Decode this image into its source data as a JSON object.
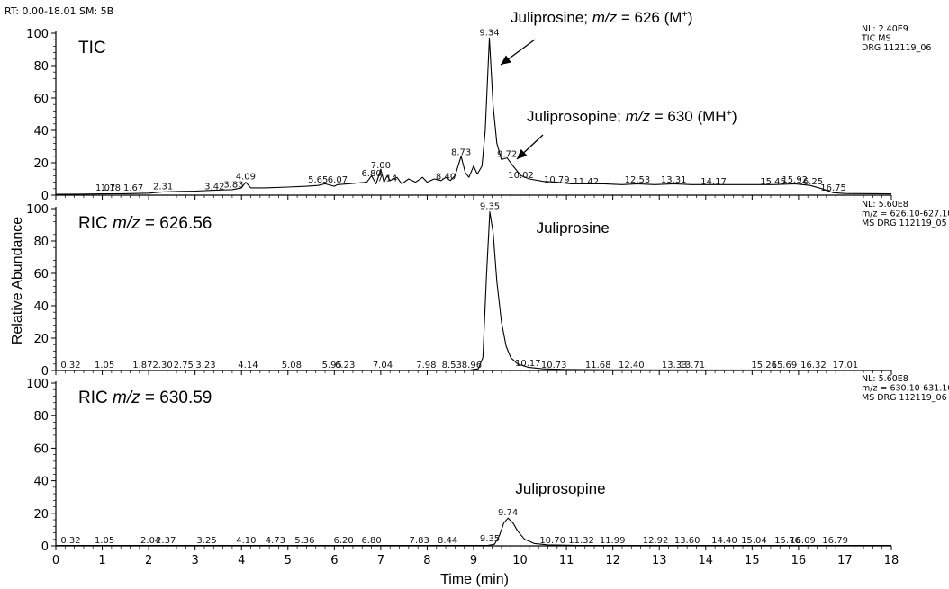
{
  "header": "RT: 0.00-18.01  SM: 5B",
  "ylabel": "Relative Abundance",
  "xlabel": "Time (min)",
  "xticks": [
    "0",
    "1",
    "2",
    "3",
    "4",
    "5",
    "6",
    "7",
    "8",
    "9",
    "10",
    "11",
    "12",
    "13",
    "14",
    "15",
    "16",
    "17",
    "18"
  ],
  "yticks": [
    "0",
    "20",
    "40",
    "60",
    "80",
    "100"
  ],
  "panels": [
    {
      "title": "TIC",
      "info": [
        "NL: 2.40E9",
        "TIC MS",
        "DRG 112119_06"
      ],
      "annotations": []
    },
    {
      "title": "RIC m/z = 626.56",
      "info": [
        "NL: 5.60E8",
        "m/z = 626.10-627.10",
        "MS DRG 112119_05"
      ],
      "annotations": [
        {
          "text": "Juliprosine",
          "x": 10.35,
          "y": 85
        }
      ]
    },
    {
      "title": "RIC m/z = 630.59",
      "info": [
        "NL: 5.60E8",
        "m/z = 630.10-631.10",
        "MS DRG 112119_06"
      ],
      "annotations": [
        {
          "text": "Juliprosopine",
          "x": 9.9,
          "y": 32
        }
      ]
    }
  ],
  "callouts": {
    "juliprosine": {
      "prefix": "Juliprosine; ",
      "italic": "m/z",
      "suffix": " = 626 (M",
      "sup": "+",
      "end": ")"
    },
    "juliprosopine": {
      "prefix": "Juliprosopine; ",
      "italic": "m/z",
      "suffix": " = 630 (MH",
      "sup": "+",
      "end": ")"
    }
  },
  "chart_data": [
    {
      "type": "line",
      "title": "TIC",
      "xlabel": "Time (min)",
      "ylabel": "Relative Abundance",
      "xlim": [
        0,
        18
      ],
      "ylim": [
        0,
        100
      ],
      "grid": false,
      "peak_labels": [
        {
          "x": 1.07,
          "y": 1
        },
        {
          "x": 1.18,
          "y": 1
        },
        {
          "x": 1.67,
          "y": 1
        },
        {
          "x": 2.31,
          "y": 2
        },
        {
          "x": 3.42,
          "y": 2
        },
        {
          "x": 3.83,
          "y": 3
        },
        {
          "x": 4.09,
          "y": 8
        },
        {
          "x": 5.65,
          "y": 6
        },
        {
          "x": 6.07,
          "y": 6
        },
        {
          "x": 6.8,
          "y": 10
        },
        {
          "x": 7.0,
          "y": 15
        },
        {
          "x": 7.14,
          "y": 7
        },
        {
          "x": 8.4,
          "y": 8
        },
        {
          "x": 8.73,
          "y": 23
        },
        {
          "x": 9.34,
          "y": 97
        },
        {
          "x": 9.72,
          "y": 22
        },
        {
          "x": 10.02,
          "y": 9
        },
        {
          "x": 10.79,
          "y": 6
        },
        {
          "x": 11.42,
          "y": 5
        },
        {
          "x": 12.53,
          "y": 6
        },
        {
          "x": 13.31,
          "y": 6
        },
        {
          "x": 14.17,
          "y": 5
        },
        {
          "x": 15.45,
          "y": 5
        },
        {
          "x": 15.92,
          "y": 6
        },
        {
          "x": 16.25,
          "y": 5
        },
        {
          "x": 16.75,
          "y": 1
        }
      ],
      "trace": [
        [
          0,
          0.5
        ],
        [
          0.5,
          0.6
        ],
        [
          1,
          0.8
        ],
        [
          1.5,
          0.9
        ],
        [
          2,
          1.2
        ],
        [
          2.3,
          2
        ],
        [
          2.6,
          2.3
        ],
        [
          3,
          2.5
        ],
        [
          3.4,
          3
        ],
        [
          3.8,
          3.4
        ],
        [
          4.0,
          4.5
        ],
        [
          4.09,
          8
        ],
        [
          4.2,
          4.5
        ],
        [
          4.5,
          4.5
        ],
        [
          5,
          5
        ],
        [
          5.4,
          5.5
        ],
        [
          5.65,
          6
        ],
        [
          5.8,
          7
        ],
        [
          6.0,
          5.5
        ],
        [
          6.07,
          6.5
        ],
        [
          6.3,
          7
        ],
        [
          6.5,
          7.5
        ],
        [
          6.7,
          8
        ],
        [
          6.8,
          12
        ],
        [
          6.9,
          7
        ],
        [
          7.0,
          16
        ],
        [
          7.07,
          8
        ],
        [
          7.14,
          12
        ],
        [
          7.2,
          9
        ],
        [
          7.35,
          11
        ],
        [
          7.45,
          7
        ],
        [
          7.6,
          10
        ],
        [
          7.75,
          8
        ],
        [
          7.9,
          11
        ],
        [
          8.0,
          8
        ],
        [
          8.15,
          10
        ],
        [
          8.3,
          9
        ],
        [
          8.4,
          11
        ],
        [
          8.5,
          9
        ],
        [
          8.6,
          12
        ],
        [
          8.73,
          24
        ],
        [
          8.82,
          14
        ],
        [
          8.9,
          11
        ],
        [
          9.0,
          18
        ],
        [
          9.08,
          13
        ],
        [
          9.18,
          18
        ],
        [
          9.25,
          40
        ],
        [
          9.34,
          97
        ],
        [
          9.42,
          55
        ],
        [
          9.5,
          32
        ],
        [
          9.6,
          22
        ],
        [
          9.72,
          23
        ],
        [
          9.85,
          18
        ],
        [
          10.02,
          12
        ],
        [
          10.2,
          10
        ],
        [
          10.5,
          8.5
        ],
        [
          10.79,
          8
        ],
        [
          11.1,
          7
        ],
        [
          11.42,
          7
        ],
        [
          11.8,
          7
        ],
        [
          12.2,
          6.5
        ],
        [
          12.53,
          7
        ],
        [
          12.9,
          6.5
        ],
        [
          13.31,
          7
        ],
        [
          13.7,
          6.5
        ],
        [
          14.17,
          6.5
        ],
        [
          14.6,
          6.5
        ],
        [
          15.0,
          6.5
        ],
        [
          15.45,
          6.5
        ],
        [
          15.92,
          7
        ],
        [
          16.25,
          6
        ],
        [
          16.5,
          4
        ],
        [
          16.75,
          1.5
        ],
        [
          17.0,
          1
        ],
        [
          18.0,
          0.8
        ]
      ]
    },
    {
      "type": "line",
      "title": "RIC m/z = 626.56",
      "xlabel": "Time (min)",
      "ylabel": "Relative Abundance",
      "xlim": [
        0,
        18
      ],
      "ylim": [
        0,
        100
      ],
      "grid": false,
      "peak_labels": [
        {
          "x": 0.32,
          "y": 0
        },
        {
          "x": 1.05,
          "y": 0
        },
        {
          "x": 1.87,
          "y": 0
        },
        {
          "x": 2.3,
          "y": 0
        },
        {
          "x": 2.75,
          "y": 0
        },
        {
          "x": 3.23,
          "y": 0
        },
        {
          "x": 4.14,
          "y": 0
        },
        {
          "x": 5.08,
          "y": 0
        },
        {
          "x": 5.95,
          "y": 0
        },
        {
          "x": 6.23,
          "y": 0
        },
        {
          "x": 7.04,
          "y": 0
        },
        {
          "x": 7.98,
          "y": 0
        },
        {
          "x": 8.53,
          "y": 0
        },
        {
          "x": 8.96,
          "y": 0
        },
        {
          "x": 9.35,
          "y": 98
        },
        {
          "x": 10.17,
          "y": 1
        },
        {
          "x": 10.73,
          "y": 0
        },
        {
          "x": 11.68,
          "y": 0
        },
        {
          "x": 12.4,
          "y": 0
        },
        {
          "x": 13.33,
          "y": 0
        },
        {
          "x": 13.71,
          "y": 0
        },
        {
          "x": 15.26,
          "y": 0
        },
        {
          "x": 15.69,
          "y": 0
        },
        {
          "x": 16.32,
          "y": 0
        },
        {
          "x": 17.01,
          "y": 0
        }
      ],
      "trace": [
        [
          0,
          0.2
        ],
        [
          8.9,
          0.3
        ],
        [
          9.1,
          1
        ],
        [
          9.2,
          8
        ],
        [
          9.28,
          60
        ],
        [
          9.35,
          98
        ],
        [
          9.42,
          85
        ],
        [
          9.5,
          55
        ],
        [
          9.6,
          30
        ],
        [
          9.7,
          15
        ],
        [
          9.8,
          8
        ],
        [
          9.95,
          4
        ],
        [
          10.17,
          2
        ],
        [
          10.5,
          1
        ],
        [
          11,
          0.6
        ],
        [
          12,
          0.4
        ],
        [
          18,
          0.2
        ]
      ]
    },
    {
      "type": "line",
      "title": "RIC m/z = 630.59",
      "xlabel": "Time (min)",
      "ylabel": "Relative Abundance",
      "xlim": [
        0,
        18
      ],
      "ylim": [
        0,
        100
      ],
      "grid": false,
      "peak_labels": [
        {
          "x": 0.32,
          "y": 0
        },
        {
          "x": 1.05,
          "y": 0
        },
        {
          "x": 2.04,
          "y": 0
        },
        {
          "x": 2.37,
          "y": 0
        },
        {
          "x": 3.25,
          "y": 0
        },
        {
          "x": 4.1,
          "y": 0
        },
        {
          "x": 4.73,
          "y": 0
        },
        {
          "x": 5.36,
          "y": 0
        },
        {
          "x": 6.2,
          "y": 0
        },
        {
          "x": 6.8,
          "y": 0
        },
        {
          "x": 7.83,
          "y": 0
        },
        {
          "x": 8.44,
          "y": 0
        },
        {
          "x": 9.35,
          "y": 1
        },
        {
          "x": 9.74,
          "y": 17
        },
        {
          "x": 10.7,
          "y": 0
        },
        {
          "x": 11.32,
          "y": 0
        },
        {
          "x": 11.99,
          "y": 0
        },
        {
          "x": 12.92,
          "y": 0
        },
        {
          "x": 13.6,
          "y": 0
        },
        {
          "x": 14.4,
          "y": 0
        },
        {
          "x": 15.04,
          "y": 0
        },
        {
          "x": 15.76,
          "y": 0
        },
        {
          "x": 16.09,
          "y": 0
        },
        {
          "x": 16.79,
          "y": 0
        }
      ],
      "trace": [
        [
          0,
          0.2
        ],
        [
          9.3,
          0.3
        ],
        [
          9.45,
          1
        ],
        [
          9.55,
          6
        ],
        [
          9.65,
          14
        ],
        [
          9.74,
          17
        ],
        [
          9.85,
          14
        ],
        [
          9.95,
          9
        ],
        [
          10.1,
          4
        ],
        [
          10.3,
          1.5
        ],
        [
          10.6,
          0.6
        ],
        [
          11.2,
          0.3
        ],
        [
          18,
          0.2
        ]
      ]
    }
  ]
}
